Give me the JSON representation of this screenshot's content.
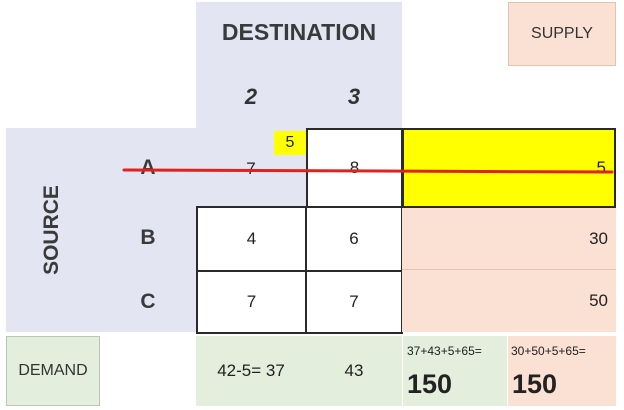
{
  "header": {
    "destination_label": "DESTINATION",
    "supply_label": "SUPPLY",
    "columns": [
      "2",
      "3"
    ]
  },
  "source_label": "SOURCE",
  "rows": [
    {
      "label": "A",
      "costs": [
        "7",
        "8"
      ],
      "supply": "5",
      "crossed_out": true
    },
    {
      "label": "B",
      "costs": [
        "4",
        "6"
      ],
      "supply": "30"
    },
    {
      "label": "C",
      "costs": [
        "7",
        "7"
      ],
      "supply": "50"
    }
  ],
  "allocation": {
    "row": "A",
    "column": "2",
    "value": "5"
  },
  "demand": {
    "label": "DEMAND",
    "values": [
      "42-5= 37",
      "43"
    ],
    "demand_total_expr": "37+43+5+65=",
    "demand_total": "150",
    "supply_total_expr": "30+50+5+65=",
    "supply_total": "150"
  },
  "colors": {
    "lavender": "#e4e5f3",
    "peach": "#fbe1d4",
    "mint": "#e3eedc",
    "highlight": "#ffff00",
    "strike": "#e0221c"
  }
}
